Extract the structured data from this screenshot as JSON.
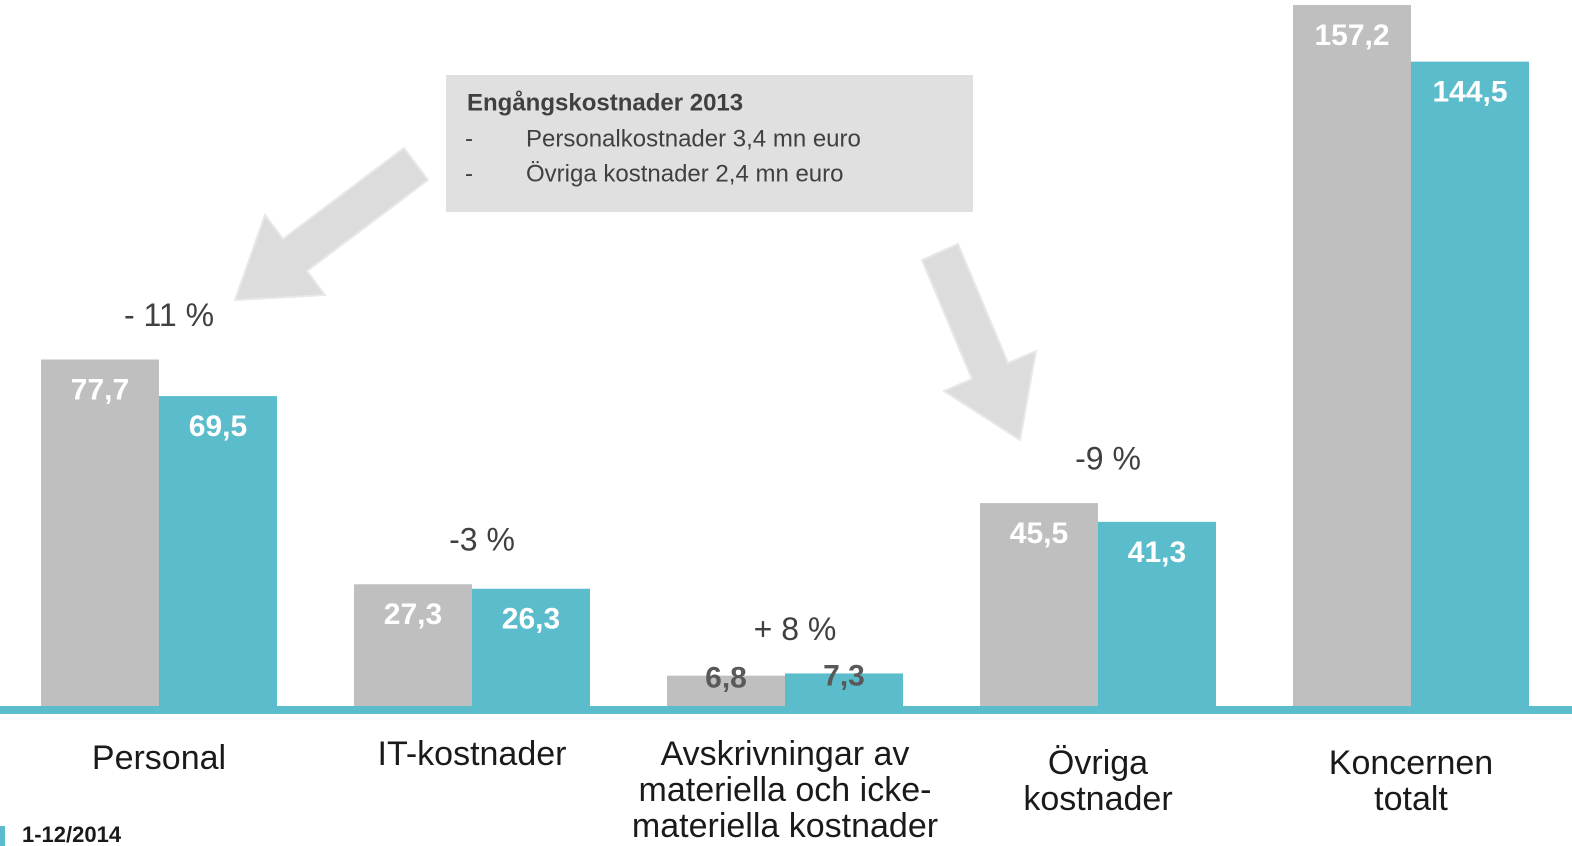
{
  "chart_data": {
    "type": "bar",
    "categories": [
      "Personal",
      "IT-kostnader",
      "Avskrivningar av materiella och icke-materiella kostnader",
      "Övriga kostnader",
      "Koncernen totalt"
    ],
    "series": [
      {
        "color": "#bfbfbf",
        "values": [
          77.7,
          27.3,
          6.8,
          45.5,
          157.2
        ],
        "value_labels": [
          "77,7",
          "27,3",
          "6,8",
          "45,5",
          "157,2"
        ]
      },
      {
        "name": "1-12/2014",
        "color": "#5bbccb",
        "values": [
          69.5,
          26.3,
          7.3,
          41.3,
          144.5
        ],
        "value_labels": [
          "69,5",
          "26,3",
          "7,3",
          "41,3",
          "144,5"
        ]
      }
    ],
    "change_labels": [
      "- 11 %",
      "-3 %",
      "+ 8 %",
      "-9 %"
    ],
    "callout": {
      "title": "Engångskostnader 2013",
      "items": [
        "Personalkostnader 3,4 mn euro",
        "Övriga kostnader 2,4 mn euro"
      ]
    }
  }
}
